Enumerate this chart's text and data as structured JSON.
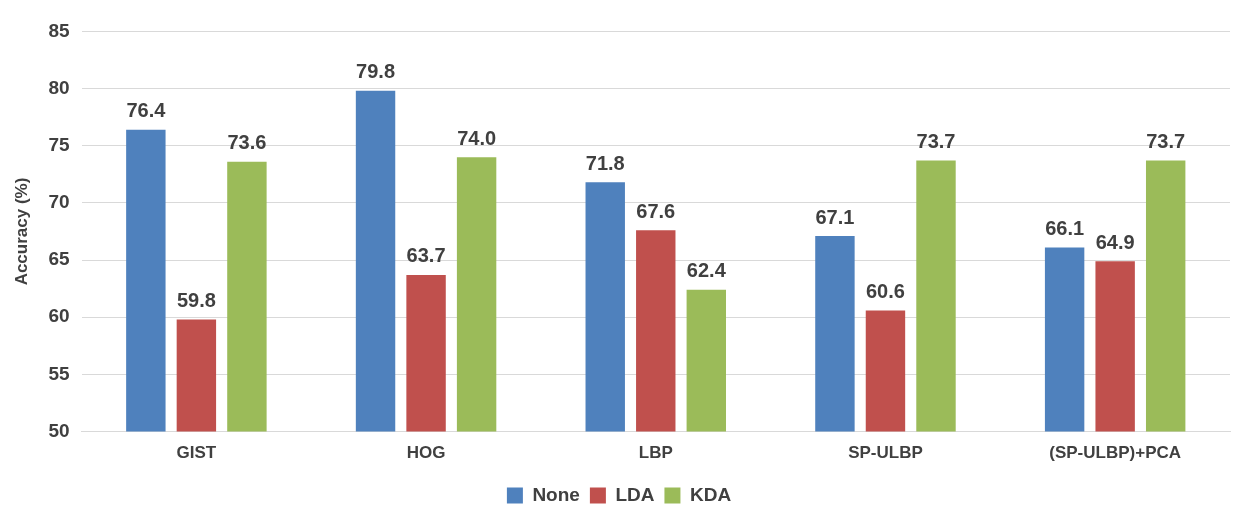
{
  "chart_data": {
    "type": "bar",
    "ylabel": "Accuracy (%)",
    "categories": [
      "GIST",
      "HOG",
      "LBP",
      "SP-ULBP",
      "(SP-ULBP)+PCA"
    ],
    "series": [
      {
        "name": "None",
        "color": "#4f81bd",
        "values": [
          76.4,
          79.8,
          71.8,
          67.1,
          66.1
        ],
        "value_labels": [
          "76.4",
          "79.8",
          "71.8",
          "67.1",
          "66.1"
        ]
      },
      {
        "name": "LDA",
        "color": "#c0504d",
        "values": [
          59.8,
          63.7,
          67.6,
          60.6,
          64.9
        ],
        "value_labels": [
          "59.8",
          "63.7",
          "67.6",
          "60.6",
          "64.9"
        ]
      },
      {
        "name": "KDA",
        "color": "#9bbb59",
        "values": [
          73.6,
          74.0,
          62.4,
          73.7,
          73.7
        ],
        "value_labels": [
          "73.6",
          "74.0",
          "62.4",
          "73.7",
          "73.7"
        ]
      }
    ],
    "ylim": [
      50,
      85
    ],
    "yticks": [
      50,
      55,
      60,
      65,
      70,
      75,
      80,
      85
    ],
    "grid": "y",
    "legend": "bottom"
  }
}
